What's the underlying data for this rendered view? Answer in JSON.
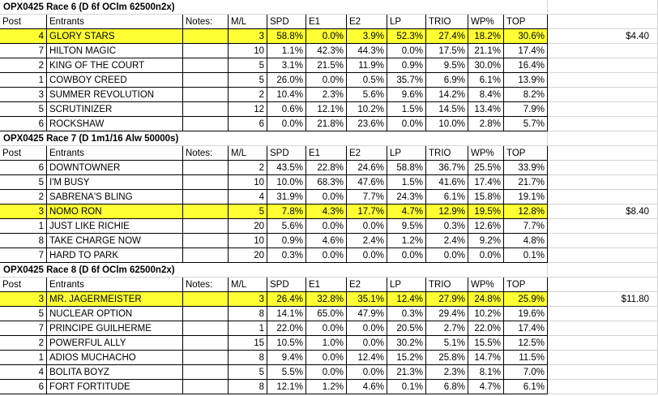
{
  "columns": [
    "Post",
    "Entrants",
    "Notes:",
    "M/L",
    "SPD",
    "E1",
    "E2",
    "LP",
    "TRIO",
    "WP%",
    "TOP"
  ],
  "races": [
    {
      "title": "OPX0425   Race 6  (D   6f   OClm 62500n2x)",
      "highlight_index": 0,
      "payout": "$4.40",
      "rows": [
        [
          "4",
          "GLORY STARS",
          "",
          "3",
          "58.8%",
          "0.0%",
          "3.9%",
          "52.3%",
          "27.4%",
          "18.2%",
          "30.6%"
        ],
        [
          "7",
          "HILTON MAGIC",
          "",
          "10",
          "1.1%",
          "42.3%",
          "44.3%",
          "0.0%",
          "17.5%",
          "21.1%",
          "17.4%"
        ],
        [
          "2",
          "KING OF THE COURT",
          "",
          "5",
          "3.1%",
          "21.5%",
          "11.9%",
          "0.9%",
          "9.5%",
          "30.0%",
          "16.4%"
        ],
        [
          "1",
          "COWBOY CREED",
          "",
          "5",
          "26.0%",
          "0.0%",
          "0.5%",
          "35.7%",
          "6.9%",
          "6.1%",
          "13.9%"
        ],
        [
          "3",
          "SUMMER REVOLUTION",
          "",
          "2",
          "10.4%",
          "2.3%",
          "5.6%",
          "9.6%",
          "14.2%",
          "8.4%",
          "8.2%"
        ],
        [
          "5",
          "SCRUTINIZER",
          "",
          "12",
          "0.6%",
          "12.1%",
          "10.2%",
          "1.5%",
          "14.5%",
          "13.4%",
          "7.9%"
        ],
        [
          "6",
          "ROCKSHAW",
          "",
          "6",
          "0.0%",
          "21.8%",
          "23.6%",
          "0.0%",
          "10.0%",
          "2.8%",
          "5.7%"
        ]
      ]
    },
    {
      "title": "OPX0425   Race 7  (D   1m1/16   Alw 50000s)",
      "highlight_index": 3,
      "payout": "$8.40",
      "rows": [
        [
          "6",
          "DOWNTOWNER",
          "",
          "2",
          "43.5%",
          "22.8%",
          "24.6%",
          "58.8%",
          "36.7%",
          "25.5%",
          "33.9%"
        ],
        [
          "5",
          "I'M BUSY",
          "",
          "10",
          "10.0%",
          "68.3%",
          "47.6%",
          "1.5%",
          "41.6%",
          "17.4%",
          "21.7%"
        ],
        [
          "2",
          "SABRENA'S BLING",
          "",
          "4",
          "31.9%",
          "0.0%",
          "7.7%",
          "24.3%",
          "6.1%",
          "15.8%",
          "19.1%"
        ],
        [
          "3",
          "NOMO RON",
          "",
          "5",
          "7.8%",
          "4.3%",
          "17.7%",
          "4.7%",
          "12.9%",
          "19.5%",
          "12.8%"
        ],
        [
          "1",
          "JUST LIKE RICHIE",
          "",
          "20",
          "5.6%",
          "0.0%",
          "0.0%",
          "9.5%",
          "0.3%",
          "12.6%",
          "7.7%"
        ],
        [
          "8",
          "TAKE CHARGE NOW",
          "",
          "10",
          "0.9%",
          "4.6%",
          "2.4%",
          "1.2%",
          "2.4%",
          "9.2%",
          "4.8%"
        ],
        [
          "7",
          "HARD TO PARK",
          "",
          "20",
          "0.3%",
          "0.0%",
          "0.0%",
          "0.0%",
          "0.0%",
          "0.0%",
          "0.1%"
        ]
      ]
    },
    {
      "title": "OPX0425   Race 8  (D   6f   OClm 62500n2x)",
      "highlight_index": 0,
      "payout": "$11.80",
      "rows": [
        [
          "3",
          "MR. JAGERMEISTER",
          "",
          "3",
          "26.4%",
          "32.8%",
          "35.1%",
          "12.4%",
          "27.9%",
          "24.8%",
          "25.9%"
        ],
        [
          "5",
          "NUCLEAR OPTION",
          "",
          "8",
          "14.1%",
          "65.0%",
          "47.9%",
          "0.3%",
          "29.4%",
          "10.2%",
          "19.6%"
        ],
        [
          "7",
          "PRINCIPE GUILHERME",
          "",
          "1",
          "22.0%",
          "0.0%",
          "0.0%",
          "20.5%",
          "2.7%",
          "22.0%",
          "17.4%"
        ],
        [
          "2",
          "POWERFUL ALLY",
          "",
          "15",
          "10.5%",
          "1.0%",
          "0.0%",
          "30.2%",
          "5.1%",
          "15.5%",
          "12.5%"
        ],
        [
          "1",
          "ADIOS MUCHACHO",
          "",
          "8",
          "9.4%",
          "0.0%",
          "12.4%",
          "15.2%",
          "25.8%",
          "14.7%",
          "11.5%"
        ],
        [
          "4",
          "BOLITA BOYZ",
          "",
          "5",
          "5.5%",
          "0.0%",
          "0.0%",
          "21.3%",
          "2.3%",
          "8.1%",
          "7.0%"
        ],
        [
          "6",
          "FORT FORTITUDE",
          "",
          "8",
          "12.1%",
          "1.2%",
          "4.6%",
          "0.1%",
          "6.8%",
          "4.7%",
          "6.1%"
        ]
      ]
    }
  ]
}
